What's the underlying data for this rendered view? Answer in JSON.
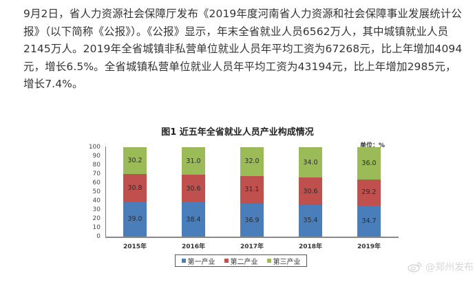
{
  "article": {
    "paragraph": "9月2日，省人力资源社会保障厅发布《2019年度河南省人力资源和社会保障事业发展统计公报》（以下简称《公报》）。《公报》显示，年末全省就业人员6562万人，其中城镇就业人员2145万人。2019年全省城镇非私营单位就业人员年平均工资为67268元，比上年增加4094元，增长6.5%。全省城镇私营单位就业人员年平均工资为43194元，比上年增加2985元，增长7.4%。"
  },
  "chart_data": {
    "type": "bar",
    "stacked": true,
    "title": "图1  近五年全省就业人员产业构成情况",
    "unit_label": "单位：%",
    "xlabel": "",
    "ylabel": "",
    "ylim": [
      0,
      100
    ],
    "yticks": [
      "100",
      "90",
      "80",
      "70",
      "60",
      "50",
      "40",
      "30",
      "20",
      "10",
      "0"
    ],
    "categories": [
      "2015年",
      "2016年",
      "2017年",
      "2018年",
      "2019年"
    ],
    "series": [
      {
        "name": "第一产业",
        "color": "#4a7ebb",
        "values": [
          39.0,
          38.4,
          36.9,
          35.4,
          34.7
        ],
        "labels": [
          "39.0",
          "38.4",
          "36.9",
          "35.4",
          "34.7"
        ]
      },
      {
        "name": "第二产业",
        "color": "#c0504d",
        "values": [
          30.8,
          30.6,
          31.1,
          30.6,
          29.2
        ],
        "labels": [
          "30.8",
          "30.6",
          "31.1",
          "30.6",
          "29.2"
        ]
      },
      {
        "name": "第三产业",
        "color": "#9bbb59",
        "values": [
          30.2,
          31.0,
          32.0,
          34.0,
          36.0
        ],
        "labels": [
          "30.2",
          "31.0",
          "32.0",
          "34.0",
          "36.0"
        ]
      }
    ],
    "grid": false,
    "legend_position": "bottom"
  },
  "watermark": {
    "text": "@郑州发布"
  }
}
